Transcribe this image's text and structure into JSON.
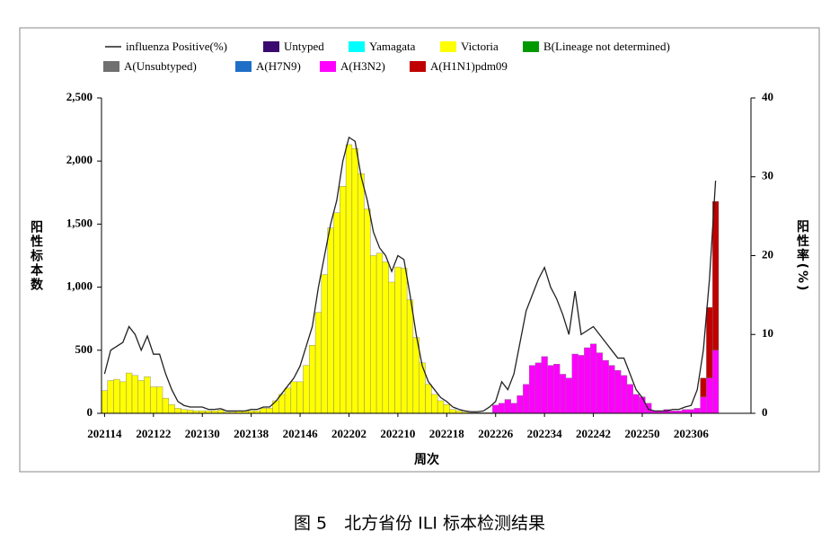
{
  "chart_data": {
    "type": "bar",
    "stacked": true,
    "grid": false,
    "caption": "图 5　北方省份 ILI 标本检测结果",
    "x_label": "周次",
    "y_label": "阳性标本数",
    "y2_label": "阳性率(%)",
    "categories": [
      "202114",
      null,
      null,
      null,
      null,
      null,
      null,
      null,
      "202122",
      null,
      null,
      null,
      null,
      null,
      null,
      null,
      "202130",
      null,
      null,
      null,
      null,
      null,
      null,
      null,
      "202138",
      null,
      null,
      null,
      null,
      null,
      null,
      null,
      "202146",
      null,
      null,
      null,
      null,
      null,
      null,
      null,
      "202202",
      null,
      null,
      null,
      null,
      null,
      null,
      null,
      "202210",
      null,
      null,
      null,
      null,
      null,
      null,
      null,
      "202218",
      null,
      null,
      null,
      null,
      null,
      null,
      null,
      "202226",
      null,
      null,
      null,
      null,
      null,
      null,
      null,
      "202234",
      null,
      null,
      null,
      null,
      null,
      null,
      null,
      "202242",
      null,
      null,
      null,
      null,
      null,
      null,
      null,
      "202250",
      null,
      null,
      null,
      null,
      null,
      null,
      null,
      "202306",
      null,
      null,
      null,
      null
    ],
    "ylim": [
      0,
      2500
    ],
    "yticks": [
      0,
      500,
      {
        "value": 1000,
        "label": "1,000"
      },
      {
        "value": 1500,
        "label": "1,500"
      },
      {
        "value": 2000,
        "label": "2,000"
      },
      {
        "value": 2500,
        "label": "2,500"
      }
    ],
    "y2lim": [
      0,
      40
    ],
    "y2ticks": [
      0,
      10,
      20,
      30,
      40
    ],
    "series": [
      {
        "name": "Untyped",
        "color": "#3b0a6e",
        "values": [
          0,
          0,
          0,
          0,
          0,
          0,
          0,
          0,
          0,
          0,
          0,
          0,
          0,
          0,
          0,
          0,
          0,
          0,
          0,
          0,
          0,
          0,
          0,
          0,
          0,
          0,
          0,
          0,
          0,
          0,
          0,
          0,
          0,
          0,
          0,
          0,
          0,
          0,
          0,
          0,
          0,
          0,
          0,
          0,
          0,
          0,
          0,
          0,
          0,
          0,
          0,
          0,
          0,
          0,
          0,
          0,
          0,
          0,
          0,
          0,
          0,
          0,
          0,
          0,
          0,
          0,
          0,
          0,
          0,
          0,
          0,
          0,
          0,
          0,
          0,
          0,
          0,
          0,
          0,
          0,
          0,
          0,
          0,
          0,
          0,
          0,
          0,
          0,
          0,
          0,
          0,
          0,
          0,
          0,
          0,
          0,
          0,
          0,
          0,
          0,
          0
        ]
      },
      {
        "name": "Yamagata",
        "color": "#00ffff",
        "values": [
          0,
          0,
          0,
          0,
          0,
          0,
          0,
          0,
          0,
          0,
          0,
          0,
          0,
          0,
          0,
          0,
          0,
          0,
          0,
          0,
          0,
          0,
          0,
          0,
          0,
          0,
          0,
          0,
          0,
          0,
          0,
          0,
          0,
          0,
          0,
          0,
          0,
          0,
          0,
          0,
          0,
          0,
          0,
          0,
          0,
          0,
          0,
          0,
          0,
          0,
          0,
          0,
          0,
          0,
          0,
          0,
          0,
          0,
          0,
          0,
          0,
          0,
          0,
          0,
          0,
          0,
          0,
          0,
          0,
          0,
          0,
          0,
          0,
          0,
          0,
          0,
          0,
          0,
          0,
          0,
          0,
          0,
          0,
          0,
          0,
          0,
          0,
          0,
          0,
          0,
          0,
          0,
          0,
          0,
          0,
          0,
          0,
          0,
          0,
          0,
          0
        ]
      },
      {
        "name": "Victoria",
        "color": "#ffff00",
        "values": [
          180,
          260,
          270,
          250,
          320,
          300,
          260,
          290,
          210,
          210,
          120,
          70,
          40,
          30,
          25,
          20,
          20,
          20,
          20,
          25,
          10,
          10,
          15,
          15,
          20,
          20,
          40,
          40,
          100,
          150,
          200,
          250,
          250,
          380,
          540,
          800,
          1100,
          1470,
          1590,
          1800,
          2130,
          2100,
          1900,
          1620,
          1250,
          1270,
          1200,
          1040,
          1160,
          1150,
          900,
          600,
          400,
          230,
          150,
          100,
          70,
          30,
          20,
          10,
          5,
          5,
          5,
          5,
          5,
          0,
          0,
          0,
          0,
          0,
          0,
          0,
          0,
          0,
          0,
          0,
          0,
          0,
          0,
          0,
          0,
          0,
          0,
          0,
          0,
          0,
          0,
          0,
          0,
          0,
          0,
          0,
          0,
          0,
          0,
          0,
          0,
          0,
          0,
          0,
          0
        ]
      },
      {
        "name": "B(Lineage not determined)",
        "color": "#009a00",
        "values": [
          0,
          0,
          0,
          0,
          0,
          0,
          0,
          0,
          0,
          0,
          0,
          0,
          0,
          0,
          0,
          0,
          0,
          0,
          0,
          0,
          0,
          0,
          0,
          0,
          0,
          0,
          0,
          0,
          0,
          0,
          0,
          0,
          0,
          0,
          0,
          0,
          0,
          0,
          0,
          0,
          0,
          0,
          0,
          0,
          0,
          0,
          0,
          0,
          0,
          0,
          0,
          0,
          0,
          0,
          0,
          0,
          0,
          0,
          0,
          0,
          0,
          0,
          0,
          0,
          0,
          0,
          0,
          0,
          0,
          0,
          0,
          0,
          0,
          0,
          0,
          0,
          0,
          0,
          0,
          0,
          0,
          0,
          0,
          0,
          0,
          0,
          0,
          0,
          0,
          0,
          0,
          0,
          0,
          0,
          0,
          0,
          0,
          0,
          0,
          0,
          0
        ]
      },
      {
        "name": "A(Unsubtyped)",
        "color": "#707070",
        "values": [
          0,
          0,
          0,
          0,
          0,
          0,
          0,
          0,
          0,
          0,
          0,
          0,
          0,
          0,
          0,
          0,
          0,
          0,
          0,
          0,
          0,
          0,
          0,
          0,
          0,
          0,
          0,
          0,
          0,
          0,
          0,
          0,
          0,
          0,
          0,
          0,
          0,
          0,
          0,
          0,
          0,
          0,
          0,
          0,
          0,
          0,
          0,
          0,
          0,
          0,
          0,
          0,
          0,
          0,
          0,
          0,
          0,
          0,
          0,
          0,
          0,
          0,
          0,
          0,
          0,
          0,
          0,
          0,
          0,
          0,
          0,
          0,
          0,
          0,
          0,
          0,
          0,
          0,
          0,
          0,
          0,
          0,
          0,
          0,
          0,
          0,
          0,
          0,
          0,
          0,
          0,
          0,
          0,
          0,
          0,
          0,
          0,
          0,
          0,
          0,
          0
        ]
      },
      {
        "name": "A(H7N9)",
        "color": "#1f6fc6",
        "values": [
          0,
          0,
          0,
          0,
          0,
          0,
          0,
          0,
          0,
          0,
          0,
          0,
          0,
          0,
          0,
          0,
          0,
          0,
          0,
          0,
          0,
          0,
          0,
          0,
          0,
          0,
          0,
          0,
          0,
          0,
          0,
          0,
          0,
          0,
          0,
          0,
          0,
          0,
          0,
          0,
          0,
          0,
          0,
          0,
          0,
          0,
          0,
          0,
          0,
          0,
          0,
          0,
          0,
          0,
          0,
          0,
          0,
          0,
          0,
          0,
          0,
          0,
          0,
          0,
          0,
          0,
          0,
          0,
          0,
          0,
          0,
          0,
          0,
          0,
          0,
          0,
          0,
          0,
          0,
          0,
          0,
          0,
          0,
          0,
          0,
          0,
          0,
          0,
          0,
          0,
          0,
          0,
          0,
          0,
          0,
          0,
          0,
          0,
          0,
          0,
          0
        ]
      },
      {
        "name": "A(H3N2)",
        "color": "#ff00ff",
        "values": [
          0,
          0,
          0,
          0,
          0,
          0,
          0,
          0,
          0,
          0,
          0,
          0,
          0,
          0,
          0,
          0,
          0,
          0,
          0,
          0,
          0,
          0,
          0,
          0,
          0,
          0,
          0,
          0,
          0,
          0,
          0,
          0,
          0,
          0,
          0,
          0,
          0,
          0,
          0,
          0,
          0,
          0,
          0,
          0,
          0,
          0,
          0,
          0,
          0,
          0,
          0,
          0,
          0,
          0,
          0,
          0,
          0,
          0,
          0,
          0,
          0,
          0,
          0,
          0,
          60,
          80,
          110,
          80,
          140,
          230,
          380,
          400,
          450,
          380,
          390,
          310,
          280,
          470,
          460,
          520,
          550,
          480,
          420,
          380,
          340,
          300,
          230,
          150,
          130,
          80,
          20,
          20,
          30,
          20,
          20,
          30,
          30,
          40,
          130,
          280,
          500
        ]
      },
      {
        "name": "A(H1N1)pdm09",
        "color": "#c00000",
        "values": [
          0,
          0,
          0,
          0,
          0,
          0,
          0,
          0,
          0,
          0,
          0,
          0,
          0,
          0,
          0,
          0,
          0,
          0,
          0,
          0,
          0,
          0,
          0,
          0,
          0,
          0,
          0,
          0,
          0,
          0,
          0,
          0,
          0,
          0,
          0,
          0,
          0,
          0,
          0,
          0,
          0,
          0,
          0,
          0,
          0,
          0,
          0,
          0,
          0,
          0,
          0,
          0,
          0,
          0,
          0,
          0,
          0,
          0,
          0,
          0,
          0,
          0,
          0,
          0,
          0,
          0,
          0,
          0,
          0,
          0,
          0,
          0,
          0,
          0,
          0,
          0,
          0,
          0,
          0,
          0,
          0,
          0,
          0,
          0,
          0,
          0,
          0,
          0,
          0,
          0,
          0,
          0,
          0,
          0,
          0,
          0,
          0,
          0,
          150,
          560,
          1180
        ]
      },
      {
        "name": "influenza Positive(%)",
        "color": "#222222",
        "axis": "y2",
        "type": "line",
        "values": [
          5,
          8,
          8.5,
          9,
          11,
          10,
          8,
          9.8,
          7.5,
          7.5,
          5,
          3,
          1.5,
          1,
          0.8,
          0.8,
          0.8,
          0.5,
          0.5,
          0.6,
          0.3,
          0.3,
          0.3,
          0.3,
          0.5,
          0.5,
          0.8,
          0.8,
          1.5,
          2.5,
          3.5,
          4.5,
          6,
          8.5,
          11,
          16,
          20,
          24,
          27,
          32,
          35,
          34.5,
          30,
          27,
          23,
          21,
          20,
          18,
          20,
          19.5,
          15,
          10,
          6,
          4,
          3,
          2,
          1.5,
          0.8,
          0.5,
          0.3,
          0.2,
          0.2,
          0.3,
          0.8,
          1.5,
          4,
          3,
          5,
          9,
          13,
          15,
          17,
          18.5,
          16,
          14.5,
          12.5,
          10,
          15.5,
          10,
          10.5,
          11,
          10,
          9,
          8,
          7,
          7,
          5,
          3,
          2,
          0.5,
          0.3,
          0.3,
          0.3,
          0.5,
          0.5,
          0.8,
          1,
          3,
          8,
          17,
          29.5
        ]
      }
    ]
  }
}
